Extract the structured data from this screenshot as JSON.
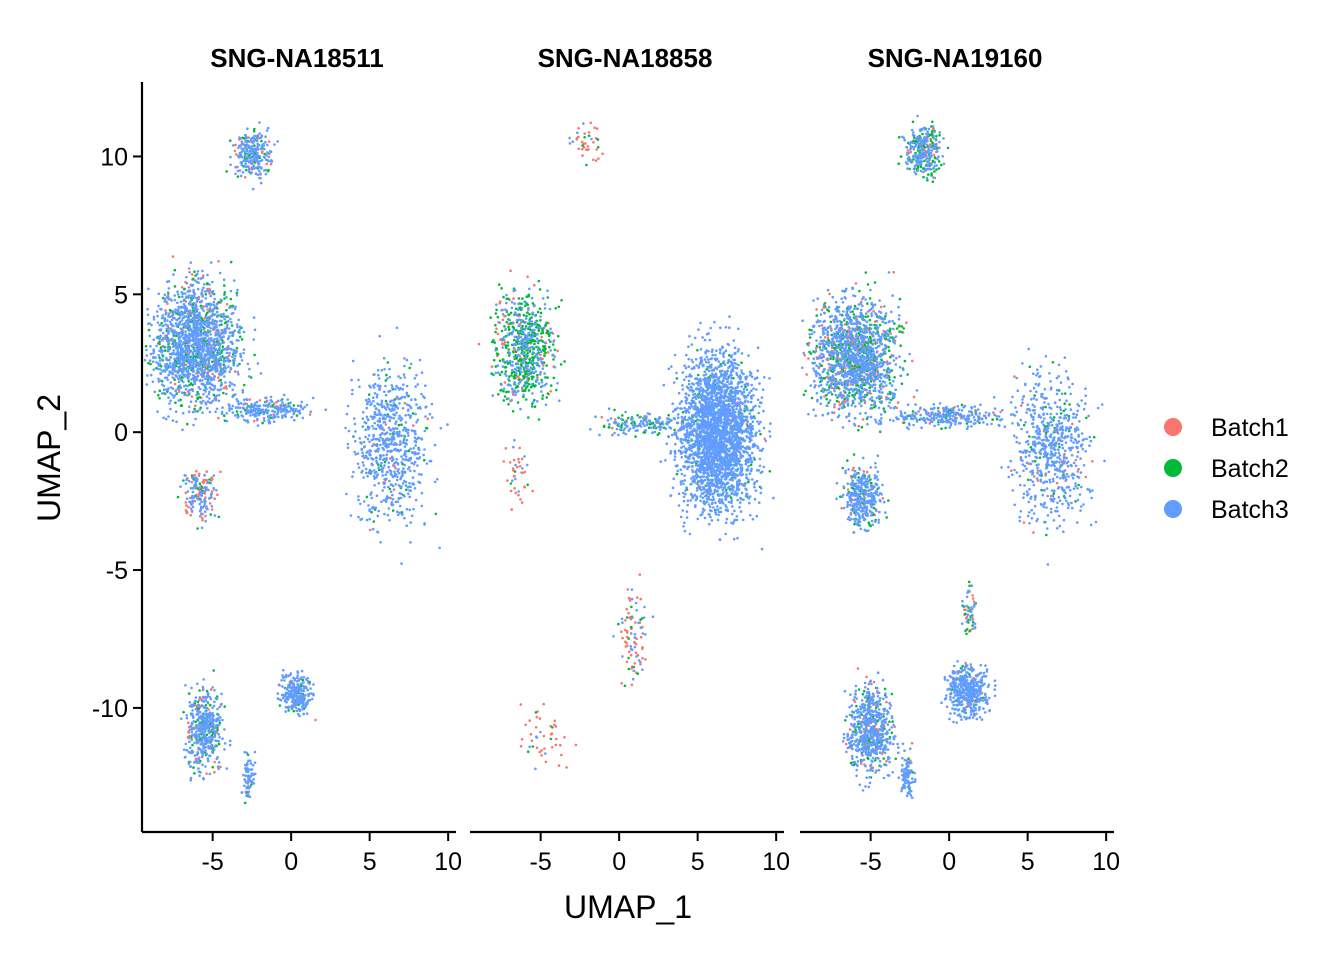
{
  "chart_data": {
    "type": "scatter",
    "xlabel": "UMAP_1",
    "ylabel": "UMAP_2",
    "xlim": [
      -9.5,
      10.5
    ],
    "ylim": [
      -14.5,
      12.7
    ],
    "xticks": [
      -5,
      0,
      5,
      10
    ],
    "yticks": [
      10,
      5,
      0,
      -5,
      -10
    ],
    "legend_position": "right",
    "series": [
      {
        "name": "Batch1",
        "color": "#F8766D"
      },
      {
        "name": "Batch2",
        "color": "#00BA38"
      },
      {
        "name": "Batch3",
        "color": "#619CFF"
      }
    ],
    "panels": [
      {
        "title": "SNG-NA18511",
        "clusters": [
          {
            "center": [
              -2.5,
              10.1
            ],
            "spread": [
              1.4,
              1.1
            ],
            "n": 260,
            "mix": [
              0.12,
              0.16,
              0.72
            ]
          },
          {
            "center": [
              -6.0,
              3.2
            ],
            "spread": [
              3.4,
              2.7
            ],
            "n": 1700,
            "mix": [
              0.08,
              0.2,
              0.72
            ]
          },
          {
            "center": [
              -1.5,
              0.8
            ],
            "spread": [
              3.5,
              0.5
            ],
            "n": 250,
            "mix": [
              0.05,
              0.1,
              0.85
            ]
          },
          {
            "center": [
              6.5,
              -0.5
            ],
            "spread": [
              3.0,
              3.5
            ],
            "n": 700,
            "mix": [
              0.03,
              0.08,
              0.89
            ]
          },
          {
            "center": [
              -5.8,
              -2.2
            ],
            "spread": [
              1.4,
              1.2
            ],
            "n": 170,
            "mix": [
              0.4,
              0.1,
              0.5
            ]
          },
          {
            "center": [
              -5.5,
              -10.8
            ],
            "spread": [
              1.4,
              1.8
            ],
            "n": 450,
            "mix": [
              0.12,
              0.18,
              0.7
            ]
          },
          {
            "center": [
              0.4,
              -9.5
            ],
            "spread": [
              1.3,
              0.9
            ],
            "n": 260,
            "mix": [
              0.1,
              0.06,
              0.84
            ]
          },
          {
            "center": [
              -2.7,
              -12.4
            ],
            "spread": [
              0.5,
              1.1
            ],
            "n": 70,
            "mix": [
              0.05,
              0.05,
              0.9
            ]
          }
        ]
      },
      {
        "title": "SNG-NA18858",
        "clusters": [
          {
            "center": [
              -2.0,
              10.5
            ],
            "spread": [
              1.2,
              0.9
            ],
            "n": 40,
            "mix": [
              0.5,
              0.3,
              0.2
            ]
          },
          {
            "center": [
              -6.0,
              3.0
            ],
            "spread": [
              2.3,
              2.5
            ],
            "n": 700,
            "mix": [
              0.12,
              0.48,
              0.4
            ]
          },
          {
            "center": [
              1.5,
              0.3
            ],
            "spread": [
              3.5,
              0.5
            ],
            "n": 160,
            "mix": [
              0.05,
              0.3,
              0.65
            ]
          },
          {
            "center": [
              6.3,
              0.0
            ],
            "spread": [
              3.0,
              3.5
            ],
            "n": 2600,
            "mix": [
              0.01,
              0.05,
              0.94
            ]
          },
          {
            "center": [
              -6.5,
              -1.5
            ],
            "spread": [
              1.2,
              1.5
            ],
            "n": 40,
            "mix": [
              0.6,
              0.15,
              0.25
            ]
          },
          {
            "center": [
              0.8,
              -7.5
            ],
            "spread": [
              1.1,
              2.3
            ],
            "n": 90,
            "mix": [
              0.5,
              0.15,
              0.35
            ]
          },
          {
            "center": [
              -4.8,
              -11.0
            ],
            "spread": [
              1.8,
              1.6
            ],
            "n": 45,
            "mix": [
              0.7,
              0.1,
              0.2
            ]
          }
        ]
      },
      {
        "title": "SNG-NA19160",
        "clusters": [
          {
            "center": [
              -1.6,
              10.2
            ],
            "spread": [
              1.5,
              1.2
            ],
            "n": 320,
            "mix": [
              0.12,
              0.33,
              0.55
            ]
          },
          {
            "center": [
              -6.0,
              2.8
            ],
            "spread": [
              3.3,
              2.6
            ],
            "n": 1600,
            "mix": [
              0.12,
              0.26,
              0.62
            ]
          },
          {
            "center": [
              0.0,
              0.6
            ],
            "spread": [
              4.0,
              0.5
            ],
            "n": 260,
            "mix": [
              0.06,
              0.08,
              0.86
            ]
          },
          {
            "center": [
              6.5,
              -0.6
            ],
            "spread": [
              3.0,
              3.3
            ],
            "n": 650,
            "mix": [
              0.04,
              0.08,
              0.88
            ]
          },
          {
            "center": [
              -5.5,
              -2.3
            ],
            "spread": [
              1.5,
              1.4
            ],
            "n": 380,
            "mix": [
              0.08,
              0.16,
              0.76
            ]
          },
          {
            "center": [
              -5.0,
              -10.8
            ],
            "spread": [
              1.8,
              1.9
            ],
            "n": 650,
            "mix": [
              0.1,
              0.13,
              0.77
            ]
          },
          {
            "center": [
              1.2,
              -9.4
            ],
            "spread": [
              1.6,
              1.1
            ],
            "n": 450,
            "mix": [
              0.04,
              0.04,
              0.92
            ]
          },
          {
            "center": [
              -2.6,
              -12.5
            ],
            "spread": [
              0.6,
              1.1
            ],
            "n": 90,
            "mix": [
              0.05,
              0.05,
              0.9
            ]
          },
          {
            "center": [
              1.3,
              -6.4
            ],
            "spread": [
              0.5,
              1.0
            ],
            "n": 60,
            "mix": [
              0.2,
              0.3,
              0.5
            ]
          }
        ]
      }
    ]
  }
}
